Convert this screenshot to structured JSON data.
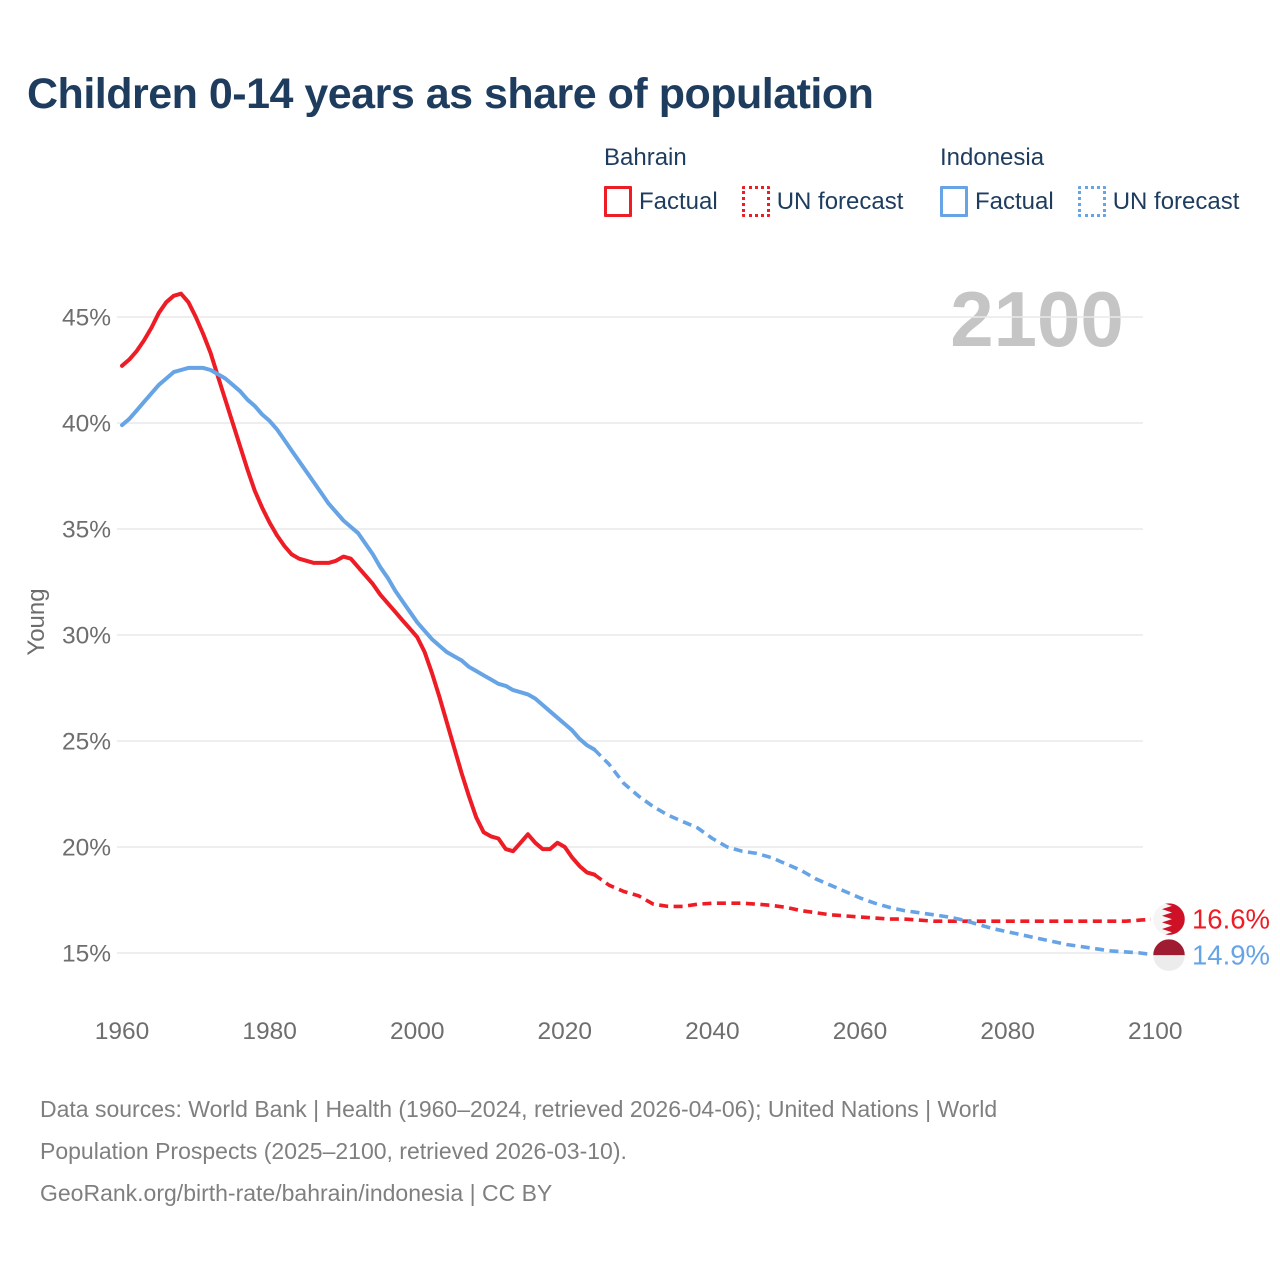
{
  "title": "Children 0-14 years as share of population",
  "legend": {
    "groups": [
      {
        "name": "Bahrain",
        "color": "#ee1c25",
        "items": [
          {
            "label": "Factual",
            "style": "solid"
          },
          {
            "label": "UN forecast",
            "style": "dotted"
          }
        ]
      },
      {
        "name": "Indonesia",
        "color": "#66a4e5",
        "items": [
          {
            "label": "Factual",
            "style": "solid"
          },
          {
            "label": "UN forecast",
            "style": "dotted"
          }
        ]
      }
    ]
  },
  "chart_data": {
    "type": "line",
    "title": "Children 0-14 years as share of population",
    "xlabel": "",
    "ylabel": "Young",
    "watermark": "2100",
    "watermark_color": "#c5c5c5",
    "grid": true,
    "gridline_color": "#e9e9e9",
    "axis_text_color": "#6e6e6e",
    "x_ticks": [
      1960,
      1980,
      2000,
      2020,
      2040,
      2060,
      2080,
      2100
    ],
    "y_ticks": [
      15,
      20,
      25,
      30,
      35,
      40,
      45
    ],
    "y_tick_suffix": "%",
    "x_range": [
      1960,
      2100
    ],
    "y_range": [
      15,
      45
    ],
    "legend_position": "top-right",
    "series": [
      {
        "id": "bahrain-factual",
        "name": "Bahrain Factual",
        "color": "#ee1c25",
        "style": "solid",
        "points": [
          [
            1960,
            42.7
          ],
          [
            1961,
            43.0
          ],
          [
            1962,
            43.4
          ],
          [
            1963,
            43.9
          ],
          [
            1964,
            44.5
          ],
          [
            1965,
            45.2
          ],
          [
            1966,
            45.7
          ],
          [
            1967,
            46.0
          ],
          [
            1968,
            46.1
          ],
          [
            1969,
            45.7
          ],
          [
            1970,
            45.0
          ],
          [
            1971,
            44.2
          ],
          [
            1972,
            43.3
          ],
          [
            1973,
            42.2
          ],
          [
            1974,
            41.1
          ],
          [
            1975,
            40.0
          ],
          [
            1976,
            38.9
          ],
          [
            1977,
            37.8
          ],
          [
            1978,
            36.8
          ],
          [
            1979,
            36.0
          ],
          [
            1980,
            35.3
          ],
          [
            1981,
            34.7
          ],
          [
            1982,
            34.2
          ],
          [
            1983,
            33.8
          ],
          [
            1984,
            33.6
          ],
          [
            1985,
            33.5
          ],
          [
            1986,
            33.4
          ],
          [
            1987,
            33.4
          ],
          [
            1988,
            33.4
          ],
          [
            1989,
            33.5
          ],
          [
            1990,
            33.7
          ],
          [
            1991,
            33.6
          ],
          [
            1992,
            33.2
          ],
          [
            1993,
            32.8
          ],
          [
            1994,
            32.4
          ],
          [
            1995,
            31.9
          ],
          [
            1996,
            31.5
          ],
          [
            1997,
            31.1
          ],
          [
            1998,
            30.7
          ],
          [
            1999,
            30.3
          ],
          [
            2000,
            29.9
          ],
          [
            2001,
            29.2
          ],
          [
            2002,
            28.2
          ],
          [
            2003,
            27.1
          ],
          [
            2004,
            25.9
          ],
          [
            2005,
            24.7
          ],
          [
            2006,
            23.5
          ],
          [
            2007,
            22.4
          ],
          [
            2008,
            21.4
          ],
          [
            2009,
            20.7
          ],
          [
            2010,
            20.5
          ],
          [
            2011,
            20.4
          ],
          [
            2012,
            19.9
          ],
          [
            2013,
            19.8
          ],
          [
            2014,
            20.2
          ],
          [
            2015,
            20.6
          ],
          [
            2016,
            20.2
          ],
          [
            2017,
            19.9
          ],
          [
            2018,
            19.9
          ],
          [
            2019,
            20.2
          ],
          [
            2020,
            20.0
          ],
          [
            2021,
            19.5
          ],
          [
            2022,
            19.1
          ],
          [
            2023,
            18.8
          ],
          [
            2024,
            18.7
          ]
        ]
      },
      {
        "id": "bahrain-forecast",
        "name": "Bahrain UN forecast",
        "color": "#ee1c25",
        "style": "dashed",
        "points": [
          [
            2024,
            18.7
          ],
          [
            2026,
            18.2
          ],
          [
            2028,
            17.9
          ],
          [
            2030,
            17.7
          ],
          [
            2032,
            17.3
          ],
          [
            2034,
            17.2
          ],
          [
            2036,
            17.2
          ],
          [
            2038,
            17.3
          ],
          [
            2040,
            17.35
          ],
          [
            2042,
            17.35
          ],
          [
            2044,
            17.35
          ],
          [
            2046,
            17.3
          ],
          [
            2048,
            17.25
          ],
          [
            2050,
            17.15
          ],
          [
            2052,
            17.0
          ],
          [
            2054,
            16.9
          ],
          [
            2056,
            16.8
          ],
          [
            2058,
            16.75
          ],
          [
            2060,
            16.7
          ],
          [
            2062,
            16.65
          ],
          [
            2064,
            16.6
          ],
          [
            2066,
            16.6
          ],
          [
            2068,
            16.55
          ],
          [
            2070,
            16.5
          ],
          [
            2072,
            16.5
          ],
          [
            2074,
            16.5
          ],
          [
            2076,
            16.5
          ],
          [
            2078,
            16.5
          ],
          [
            2080,
            16.5
          ],
          [
            2082,
            16.5
          ],
          [
            2084,
            16.5
          ],
          [
            2086,
            16.5
          ],
          [
            2088,
            16.5
          ],
          [
            2090,
            16.5
          ],
          [
            2092,
            16.5
          ],
          [
            2094,
            16.5
          ],
          [
            2096,
            16.5
          ],
          [
            2098,
            16.55
          ],
          [
            2100,
            16.6
          ]
        ]
      },
      {
        "id": "indonesia-factual",
        "name": "Indonesia Factual",
        "color": "#66a4e5",
        "style": "solid",
        "points": [
          [
            1960,
            39.9
          ],
          [
            1961,
            40.2
          ],
          [
            1962,
            40.6
          ],
          [
            1963,
            41.0
          ],
          [
            1964,
            41.4
          ],
          [
            1965,
            41.8
          ],
          [
            1966,
            42.1
          ],
          [
            1967,
            42.4
          ],
          [
            1968,
            42.5
          ],
          [
            1969,
            42.6
          ],
          [
            1970,
            42.6
          ],
          [
            1971,
            42.6
          ],
          [
            1972,
            42.5
          ],
          [
            1973,
            42.3
          ],
          [
            1974,
            42.1
          ],
          [
            1975,
            41.8
          ],
          [
            1976,
            41.5
          ],
          [
            1977,
            41.1
          ],
          [
            1978,
            40.8
          ],
          [
            1979,
            40.4
          ],
          [
            1980,
            40.1
          ],
          [
            1981,
            39.7
          ],
          [
            1982,
            39.2
          ],
          [
            1983,
            38.7
          ],
          [
            1984,
            38.2
          ],
          [
            1985,
            37.7
          ],
          [
            1986,
            37.2
          ],
          [
            1987,
            36.7
          ],
          [
            1988,
            36.2
          ],
          [
            1989,
            35.8
          ],
          [
            1990,
            35.4
          ],
          [
            1991,
            35.1
          ],
          [
            1992,
            34.8
          ],
          [
            1993,
            34.3
          ],
          [
            1994,
            33.8
          ],
          [
            1995,
            33.2
          ],
          [
            1996,
            32.7
          ],
          [
            1997,
            32.1
          ],
          [
            1998,
            31.6
          ],
          [
            1999,
            31.1
          ],
          [
            2000,
            30.6
          ],
          [
            2001,
            30.2
          ],
          [
            2002,
            29.8
          ],
          [
            2003,
            29.5
          ],
          [
            2004,
            29.2
          ],
          [
            2005,
            29.0
          ],
          [
            2006,
            28.8
          ],
          [
            2007,
            28.5
          ],
          [
            2008,
            28.3
          ],
          [
            2009,
            28.1
          ],
          [
            2010,
            27.9
          ],
          [
            2011,
            27.7
          ],
          [
            2012,
            27.6
          ],
          [
            2013,
            27.4
          ],
          [
            2014,
            27.3
          ],
          [
            2015,
            27.2
          ],
          [
            2016,
            27.0
          ],
          [
            2017,
            26.7
          ],
          [
            2018,
            26.4
          ],
          [
            2019,
            26.1
          ],
          [
            2020,
            25.8
          ],
          [
            2021,
            25.5
          ],
          [
            2022,
            25.1
          ],
          [
            2023,
            24.8
          ],
          [
            2024,
            24.6
          ]
        ]
      },
      {
        "id": "indonesia-forecast",
        "name": "Indonesia UN forecast",
        "color": "#66a4e5",
        "style": "dashed",
        "points": [
          [
            2024,
            24.6
          ],
          [
            2026,
            23.9
          ],
          [
            2028,
            23.0
          ],
          [
            2030,
            22.4
          ],
          [
            2032,
            21.9
          ],
          [
            2034,
            21.5
          ],
          [
            2036,
            21.2
          ],
          [
            2038,
            20.9
          ],
          [
            2040,
            20.4
          ],
          [
            2042,
            20.0
          ],
          [
            2044,
            19.8
          ],
          [
            2046,
            19.7
          ],
          [
            2048,
            19.5
          ],
          [
            2050,
            19.2
          ],
          [
            2052,
            18.9
          ],
          [
            2054,
            18.5
          ],
          [
            2056,
            18.2
          ],
          [
            2058,
            17.9
          ],
          [
            2060,
            17.6
          ],
          [
            2062,
            17.35
          ],
          [
            2064,
            17.15
          ],
          [
            2066,
            17.0
          ],
          [
            2068,
            16.9
          ],
          [
            2070,
            16.8
          ],
          [
            2072,
            16.7
          ],
          [
            2074,
            16.55
          ],
          [
            2076,
            16.35
          ],
          [
            2078,
            16.15
          ],
          [
            2080,
            16.0
          ],
          [
            2082,
            15.85
          ],
          [
            2084,
            15.7
          ],
          [
            2086,
            15.55
          ],
          [
            2088,
            15.4
          ],
          [
            2090,
            15.3
          ],
          [
            2092,
            15.2
          ],
          [
            2094,
            15.1
          ],
          [
            2096,
            15.05
          ],
          [
            2098,
            15.0
          ],
          [
            2100,
            14.9
          ]
        ]
      }
    ],
    "end_labels": [
      {
        "text": "16.6%",
        "value": 16.6,
        "color": "#ee1c25",
        "flag": "bahrain",
        "flag_colors": [
          "#ce1126",
          "#f5f5f5"
        ]
      },
      {
        "text": "14.9%",
        "value": 14.9,
        "color": "#66a4e5",
        "flag": "indonesia",
        "flag_colors": [
          "#9f1b31",
          "#ececec"
        ]
      }
    ]
  },
  "footer": {
    "lines": [
      "Data sources: World Bank | Health (1960–2024, retrieved 2026-04-06); United Nations | World",
      "Population Prospects (2025–2100, retrieved 2026-03-10).",
      "GeoRank.org/birth-rate/bahrain/indonesia | CC BY"
    ]
  }
}
